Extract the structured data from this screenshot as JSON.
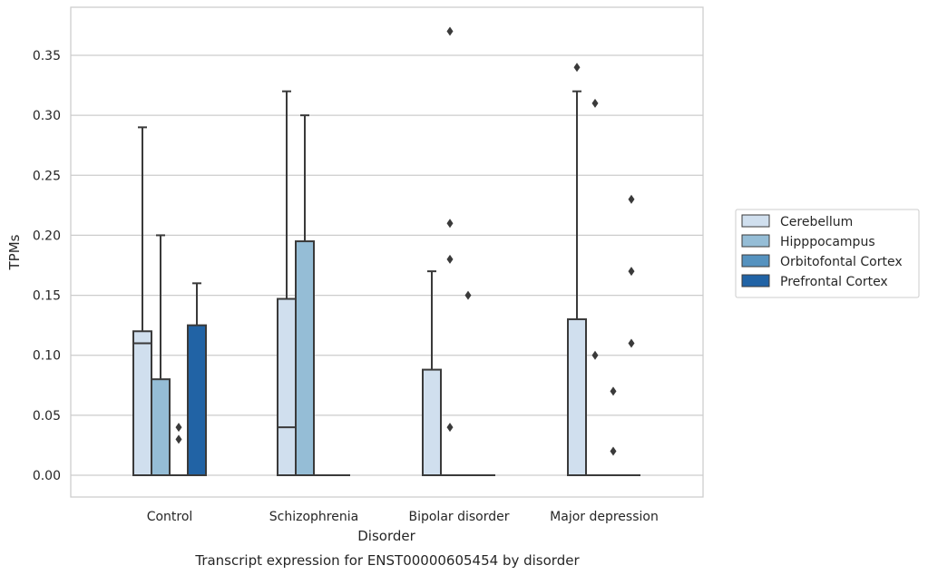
{
  "chart_data": {
    "type": "box",
    "title": "Transcript expression for ENST00000605454 by disorder",
    "xlabel": "Disorder",
    "ylabel": "TPMs",
    "ylim": [
      -0.018,
      0.388
    ],
    "yticks": [
      "0.00",
      "0.05",
      "0.10",
      "0.15",
      "0.20",
      "0.25",
      "0.30",
      "0.35"
    ],
    "categories": [
      "Control",
      "Schizophrenia",
      "Bipolar disorder",
      "Major depression"
    ],
    "legend_position": "right",
    "grid": true,
    "series": [
      {
        "name": "Cerebellum",
        "color": "#d0dfee",
        "boxes": [
          {
            "q1": 0.0,
            "median": 0.11,
            "q3": 0.12,
            "whisker_low": 0.0,
            "whisker_high": 0.29,
            "outliers": []
          },
          {
            "q1": 0.0,
            "median": 0.04,
            "q3": 0.147,
            "whisker_low": 0.0,
            "whisker_high": 0.32,
            "outliers": []
          },
          {
            "q1": 0.0,
            "median": 0.0,
            "q3": 0.088,
            "whisker_low": 0.0,
            "whisker_high": 0.17,
            "outliers": []
          },
          {
            "q1": 0.0,
            "median": 0.0,
            "q3": 0.13,
            "whisker_low": 0.0,
            "whisker_high": 0.32,
            "outliers": [
              0.34
            ]
          }
        ]
      },
      {
        "name": "Hipppocampus",
        "color": "#95bdd6",
        "boxes": [
          {
            "q1": 0.0,
            "median": 0.0,
            "q3": 0.08,
            "whisker_low": 0.0,
            "whisker_high": 0.2,
            "outliers": []
          },
          {
            "q1": 0.0,
            "median": 0.0,
            "q3": 0.195,
            "whisker_low": 0.0,
            "whisker_high": 0.3,
            "outliers": []
          },
          {
            "q1": 0.0,
            "median": 0.0,
            "q3": 0.0,
            "whisker_low": 0.0,
            "whisker_high": 0.0,
            "outliers": [
              0.37,
              0.21,
              0.18,
              0.04
            ]
          },
          {
            "q1": 0.0,
            "median": 0.0,
            "q3": 0.0,
            "whisker_low": 0.0,
            "whisker_high": 0.0,
            "outliers": [
              0.31,
              0.1
            ]
          }
        ]
      },
      {
        "name": "Orbitofontal Cortex",
        "color": "#5592bf",
        "boxes": [
          {
            "q1": 0.0,
            "median": 0.0,
            "q3": 0.0,
            "whisker_low": 0.0,
            "whisker_high": 0.0,
            "outliers": [
              0.04,
              0.03
            ]
          },
          {
            "q1": 0.0,
            "median": 0.0,
            "q3": 0.0,
            "whisker_low": 0.0,
            "whisker_high": 0.0,
            "outliers": []
          },
          {
            "q1": 0.0,
            "median": 0.0,
            "q3": 0.0,
            "whisker_low": 0.0,
            "whisker_high": 0.0,
            "outliers": [
              0.15
            ]
          },
          {
            "q1": 0.0,
            "median": 0.0,
            "q3": 0.0,
            "whisker_low": 0.0,
            "whisker_high": 0.0,
            "outliers": [
              0.07,
              0.02
            ]
          }
        ]
      },
      {
        "name": "Prefrontal Cortex",
        "color": "#2163a5",
        "boxes": [
          {
            "q1": 0.0,
            "median": 0.0,
            "q3": 0.125,
            "whisker_low": 0.0,
            "whisker_high": 0.16,
            "outliers": []
          },
          {
            "q1": 0.0,
            "median": 0.0,
            "q3": 0.0,
            "whisker_low": 0.0,
            "whisker_high": 0.0,
            "outliers": []
          },
          {
            "q1": 0.0,
            "median": 0.0,
            "q3": 0.0,
            "whisker_low": 0.0,
            "whisker_high": 0.0,
            "outliers": []
          },
          {
            "q1": 0.0,
            "median": 0.0,
            "q3": 0.0,
            "whisker_low": 0.0,
            "whisker_high": 0.0,
            "outliers": [
              0.23,
              0.17,
              0.11
            ]
          }
        ]
      }
    ]
  }
}
